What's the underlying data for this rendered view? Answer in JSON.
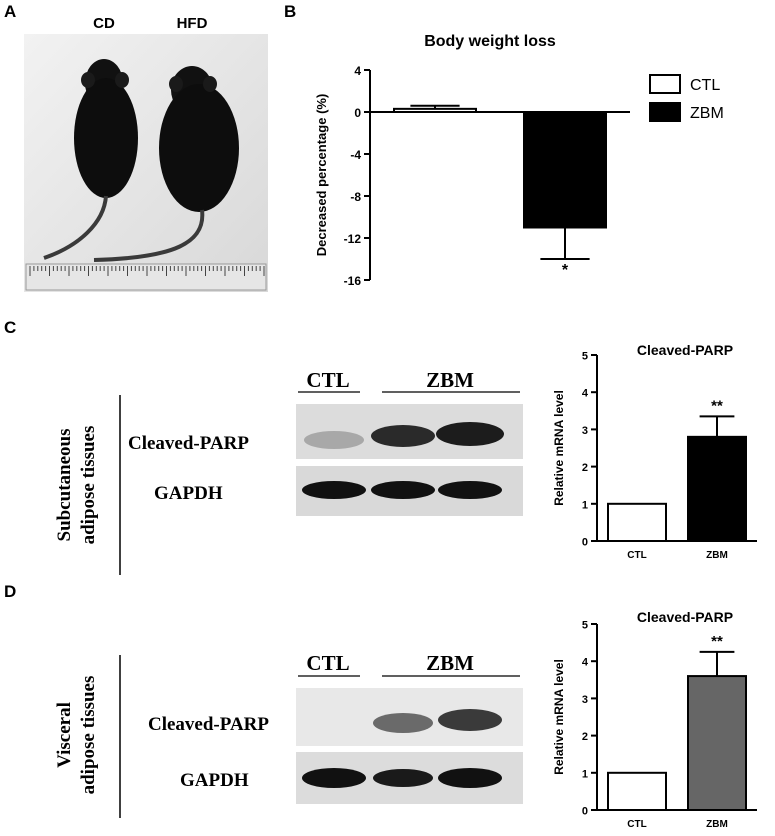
{
  "panels": {
    "a": {
      "label": "A",
      "mouse_labels": [
        "CD",
        "HFD"
      ]
    },
    "b": {
      "label": "B",
      "chart_data": {
        "type": "bar",
        "title": "Body weight loss",
        "ylabel": "Decreased percentage (%)",
        "xlabel": "",
        "categories": [
          "CTL",
          "ZBM"
        ],
        "values": [
          0.3,
          -11
        ],
        "errors": [
          0.3,
          3
        ],
        "ylim": [
          -16,
          4
        ],
        "yticks": [
          4,
          0,
          -4,
          -8,
          -12,
          -16
        ],
        "bar_colors": [
          "#ffffff",
          "#000000"
        ],
        "significance": [
          "",
          "*"
        ],
        "legend": [
          "CTL",
          "ZBM"
        ],
        "legend_position": "right"
      }
    },
    "c": {
      "label": "C",
      "tissue_label": [
        "Subcutaneous",
        "adipose tissues"
      ],
      "blot": {
        "group_labels": [
          "CTL",
          "ZBM"
        ],
        "row_labels": [
          "Cleaved-PARP",
          "GAPDH"
        ]
      },
      "chart_data": {
        "type": "bar",
        "title": "Cleaved-PARP",
        "ylabel": "Relative mRNA level",
        "xlabel": "",
        "categories": [
          "CTL",
          "ZBM"
        ],
        "values": [
          1.0,
          2.8
        ],
        "errors": [
          0,
          0.55
        ],
        "ylim": [
          0,
          5
        ],
        "yticks": [
          0,
          1,
          2,
          3,
          4,
          5
        ],
        "bar_colors": [
          "#ffffff",
          "#000000"
        ],
        "significance": [
          "",
          "**"
        ]
      }
    },
    "d": {
      "label": "D",
      "tissue_label": [
        "Visceral",
        "adipose tissues"
      ],
      "blot": {
        "group_labels": [
          "CTL",
          "ZBM"
        ],
        "row_labels": [
          "Cleaved-PARP",
          "GAPDH"
        ]
      },
      "chart_data": {
        "type": "bar",
        "title": "Cleaved-PARP",
        "ylabel": "Relative mRNA level",
        "xlabel": "",
        "categories": [
          "CTL",
          "ZBM"
        ],
        "values": [
          1.0,
          3.6
        ],
        "errors": [
          0,
          0.65
        ],
        "ylim": [
          0,
          5
        ],
        "yticks": [
          0,
          1,
          2,
          3,
          4,
          5
        ],
        "bar_colors": [
          "#ffffff",
          "#666666"
        ],
        "significance": [
          "",
          "**"
        ]
      }
    }
  }
}
